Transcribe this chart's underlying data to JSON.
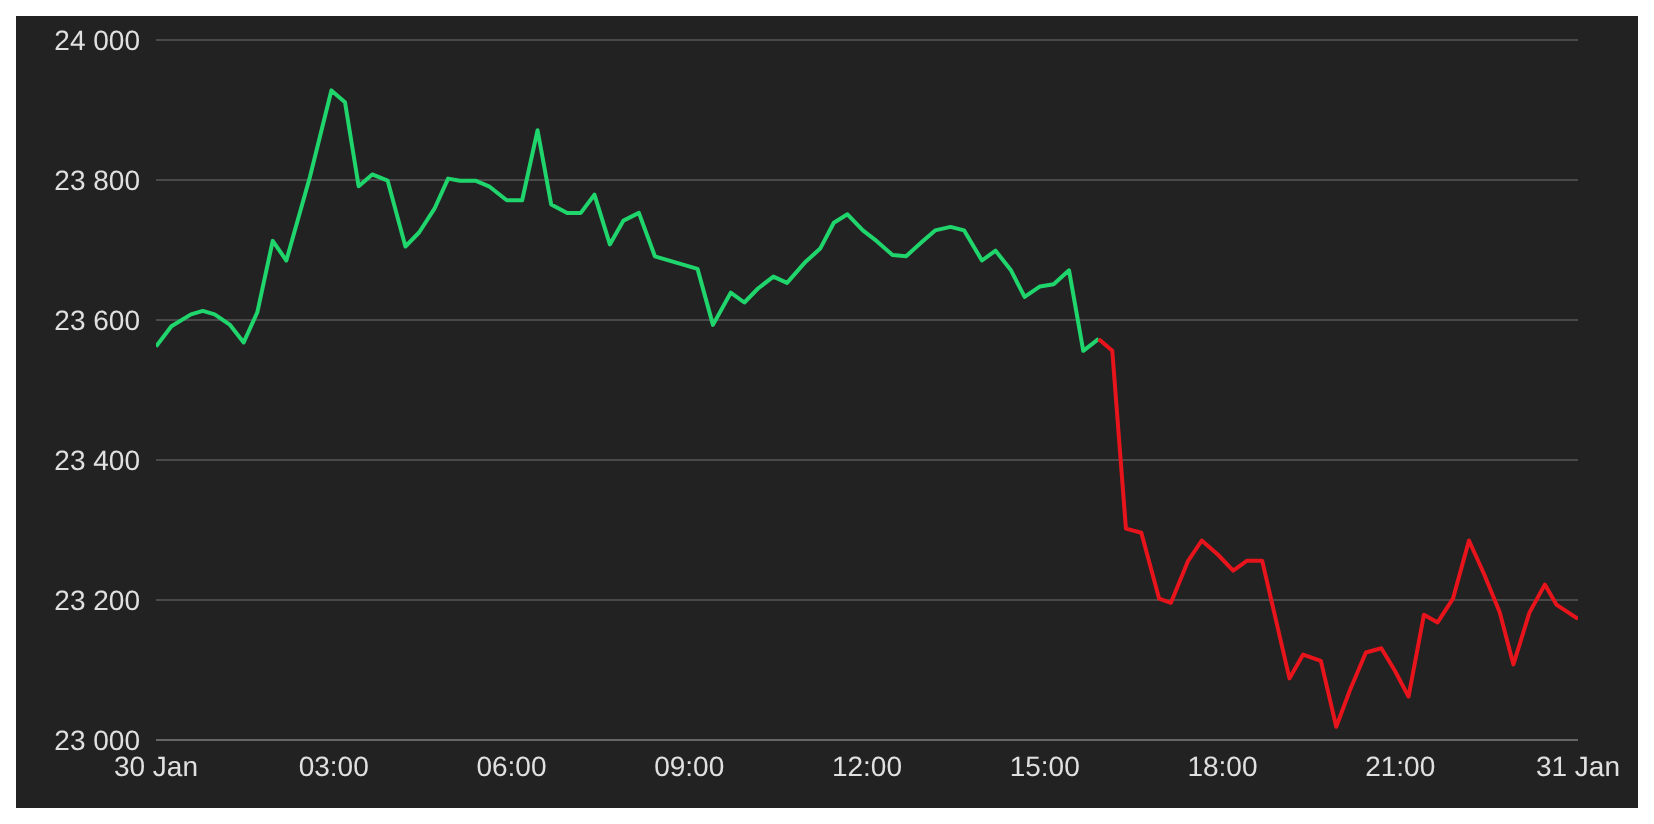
{
  "chart_data": {
    "type": "line",
    "xlim": [
      0,
      24
    ],
    "xticks": [
      {
        "value": 0,
        "label": "30 Jan"
      },
      {
        "value": 3,
        "label": "03:00"
      },
      {
        "value": 6,
        "label": "06:00"
      },
      {
        "value": 9,
        "label": "09:00"
      },
      {
        "value": 12,
        "label": "12:00"
      },
      {
        "value": 15,
        "label": "15:00"
      },
      {
        "value": 18,
        "label": "18:00"
      },
      {
        "value": 21,
        "label": "21:00"
      },
      {
        "value": 24,
        "label": "31 Jan"
      }
    ],
    "ylim": [
      23000,
      24000
    ],
    "yticks": [
      {
        "value": 23000,
        "label": "23 000"
      },
      {
        "value": 23200,
        "label": "23 200"
      },
      {
        "value": 23400,
        "label": "23 400"
      },
      {
        "value": 23600,
        "label": "23 600"
      },
      {
        "value": 23800,
        "label": "23 800"
      },
      {
        "value": 24000,
        "label": "24 000"
      }
    ],
    "grid": "y",
    "marker": "none",
    "line_style": "solid",
    "series": [
      {
        "color": "#1fd56c",
        "x": [
          0,
          0.26,
          0.59,
          0.79,
          0.99,
          1.25,
          1.48,
          1.71,
          1.97,
          2.2,
          2.6,
          2.96,
          3.19,
          3.42,
          3.65,
          3.91,
          4.21,
          4.44,
          4.7,
          4.93,
          5.13,
          5.39,
          5.62,
          5.92,
          6.18,
          6.44,
          6.67,
          6.94,
          7.17,
          7.4,
          7.66,
          7.89,
          8.15,
          8.42,
          9.14,
          9.4,
          9.7,
          9.93,
          10.16,
          10.42,
          10.65,
          10.95,
          11.21,
          11.44,
          11.67,
          11.93,
          12.16,
          12.43,
          12.66,
          12.92,
          13.15,
          13.41,
          13.64,
          13.94,
          14.17,
          14.43,
          14.66,
          14.92,
          15.15,
          15.41,
          15.65,
          15.91
        ],
        "values": [
          23562,
          23591,
          23608,
          23613,
          23608,
          23593,
          23568,
          23611,
          23713,
          23685,
          23805,
          23928,
          23911,
          23791,
          23808,
          23799,
          23705,
          23725,
          23759,
          23802,
          23799,
          23799,
          23791,
          23771,
          23771,
          23871,
          23765,
          23753,
          23753,
          23779,
          23708,
          23742,
          23753,
          23691,
          23673,
          23593,
          23639,
          23625,
          23645,
          23662,
          23653,
          23682,
          23702,
          23739,
          23751,
          23728,
          23713,
          23693,
          23691,
          23711,
          23728,
          23733,
          23728,
          23685,
          23699,
          23671,
          23633,
          23648,
          23651,
          23671,
          23556,
          23573
        ]
      },
      {
        "color": "#e8141c",
        "x": [
          15.91,
          16.14,
          16.37,
          16.63,
          16.93,
          17.13,
          17.42,
          17.65,
          17.92,
          18.18,
          18.41,
          18.67,
          19.13,
          19.36,
          19.66,
          19.92,
          20.15,
          20.42,
          20.68,
          20.91,
          21.14,
          21.4,
          21.63,
          21.89,
          22.16,
          22.42,
          22.68,
          22.91,
          23.18,
          23.44,
          23.64,
          24
        ],
        "values": [
          23573,
          23556,
          23302,
          23296,
          23202,
          23196,
          23256,
          23285,
          23265,
          23242,
          23256,
          23256,
          23088,
          23122,
          23113,
          23019,
          23071,
          23125,
          23131,
          23099,
          23062,
          23179,
          23168,
          23202,
          23285,
          23236,
          23182,
          23108,
          23182,
          23222,
          23193,
          23173
        ]
      }
    ]
  }
}
